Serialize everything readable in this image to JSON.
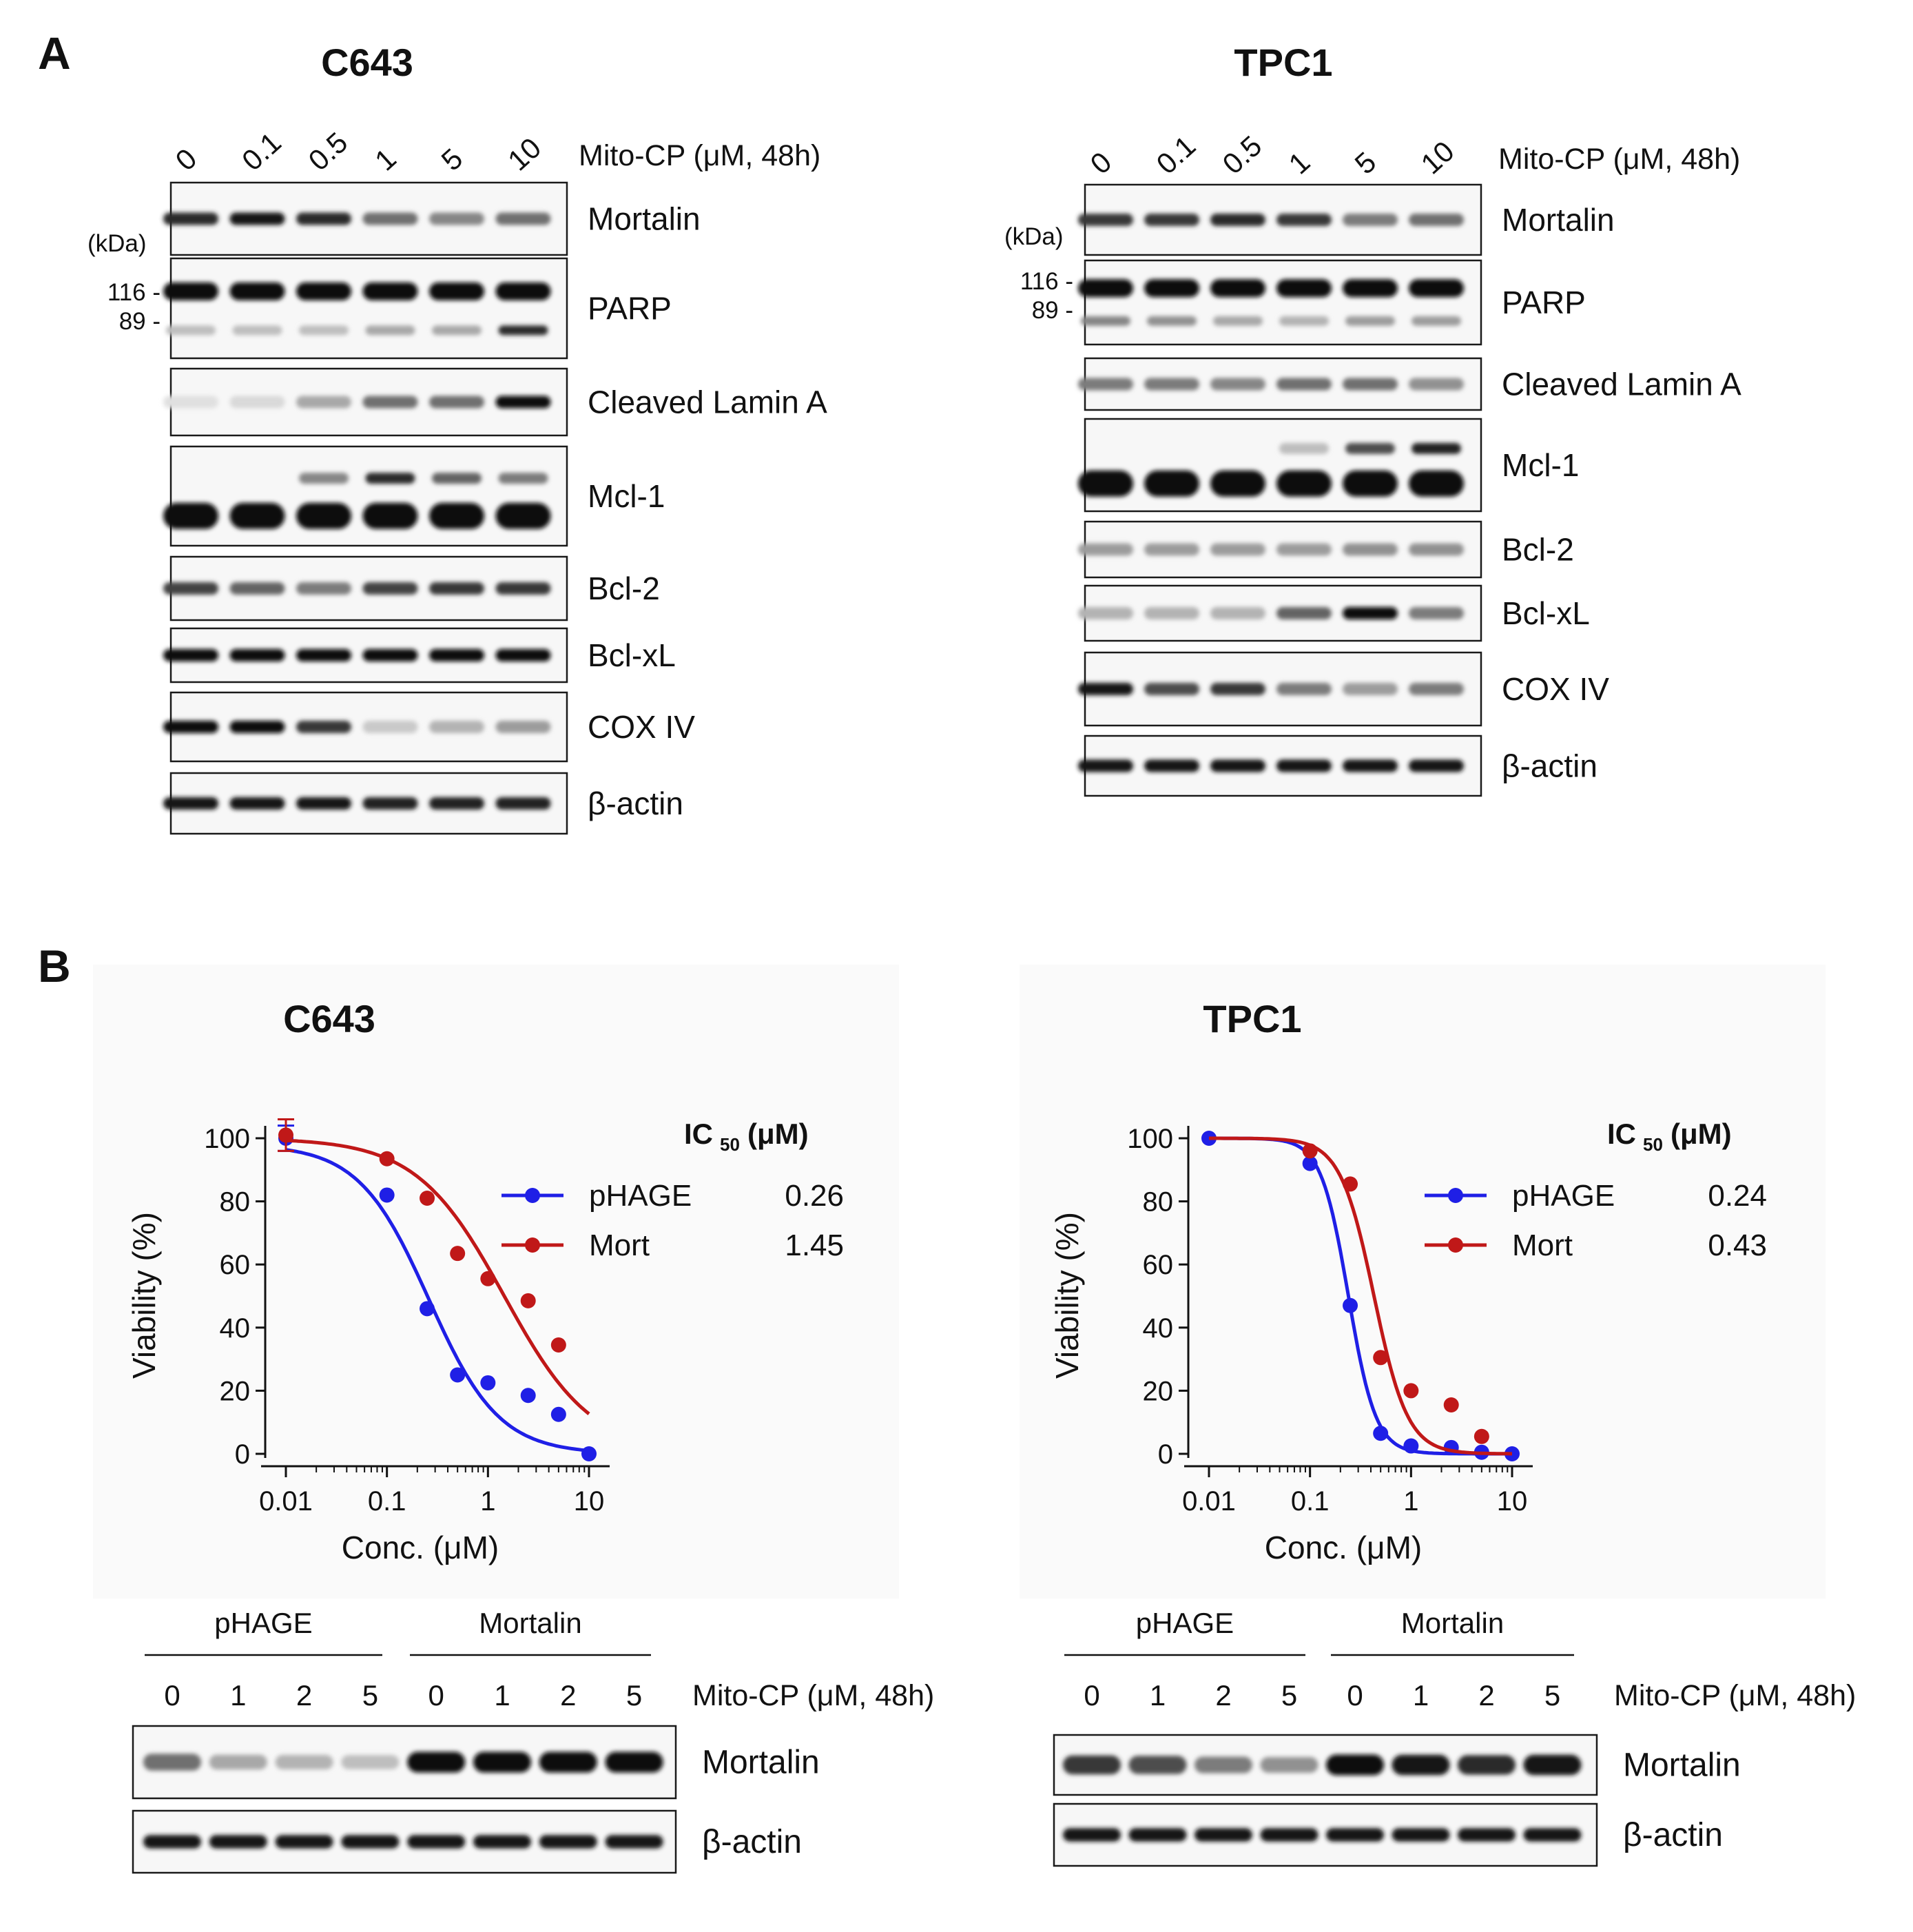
{
  "panel_a": {
    "letter": "A",
    "treatment_label": "Mito-CP (μM, 48h)",
    "kda_label": "(kDa)",
    "blots": [
      {
        "title": "C643",
        "doses": [
          "0",
          "0.1",
          "0.5",
          "1",
          "5",
          "10"
        ],
        "markers": [
          "116 -",
          "89 -"
        ],
        "rows": [
          {
            "name": "Mortalin",
            "intensity": [
              0.85,
              0.95,
              0.85,
              0.55,
              0.45,
              0.55
            ]
          },
          {
            "name": "PARP",
            "intensity": [
              1,
              1,
              1,
              1,
              1,
              1
            ],
            "lower_band": [
              0.2,
              0.2,
              0.2,
              0.3,
              0.3,
              0.85
            ]
          },
          {
            "name": "Cleaved  Lamin  A",
            "intensity": [
              0.05,
              0.08,
              0.3,
              0.55,
              0.55,
              1
            ]
          },
          {
            "name": "Mcl-1",
            "intensity": [
              1,
              1,
              1,
              1,
              1,
              1
            ],
            "upper_band": [
              0,
              0,
              0.45,
              0.85,
              0.6,
              0.5
            ]
          },
          {
            "name": "Bcl-2",
            "intensity": [
              0.75,
              0.6,
              0.5,
              0.75,
              0.8,
              0.8
            ]
          },
          {
            "name": "Bcl-xL",
            "intensity": [
              1,
              1,
              1,
              1,
              1,
              1
            ]
          },
          {
            "name": "COX  IV",
            "intensity": [
              1,
              1,
              0.8,
              0.15,
              0.25,
              0.35
            ]
          },
          {
            "name": "β-actin",
            "intensity": [
              0.95,
              0.95,
              0.95,
              0.9,
              0.9,
              0.9
            ]
          }
        ]
      },
      {
        "title": "TPC1",
        "doses": [
          "0",
          "0.1",
          "0.5",
          "1",
          "5",
          "10"
        ],
        "markers": [
          "116 -",
          "89 -"
        ],
        "rows": [
          {
            "name": "Mortalin",
            "intensity": [
              0.8,
              0.8,
              0.85,
              0.8,
              0.5,
              0.55
            ]
          },
          {
            "name": "PARP",
            "intensity": [
              1,
              1,
              1,
              1,
              1,
              1
            ],
            "lower_band": [
              0.45,
              0.4,
              0.3,
              0.25,
              0.35,
              0.35
            ]
          },
          {
            "name": "Cleaved  Lamin  A",
            "intensity": [
              0.5,
              0.5,
              0.45,
              0.55,
              0.55,
              0.4
            ]
          },
          {
            "name": "Mcl-1",
            "intensity": [
              1,
              1,
              1,
              1,
              1,
              1
            ],
            "upper_band": [
              0,
              0,
              0,
              0.2,
              0.7,
              0.9
            ]
          },
          {
            "name": "Bcl-2",
            "intensity": [
              0.35,
              0.35,
              0.35,
              0.35,
              0.4,
              0.4
            ]
          },
          {
            "name": "Bcl-xL",
            "intensity": [
              0.25,
              0.25,
              0.25,
              0.6,
              1,
              0.5
            ]
          },
          {
            "name": "COX  IV",
            "intensity": [
              0.95,
              0.7,
              0.8,
              0.5,
              0.35,
              0.5
            ]
          },
          {
            "name": "β-actin",
            "intensity": [
              0.95,
              0.95,
              0.95,
              0.95,
              0.95,
              0.95
            ]
          }
        ]
      }
    ]
  },
  "panel_b": {
    "letter": "B",
    "charts": [
      {
        "title": "C643",
        "ic50_title": "IC",
        "ic50_sub": "50",
        "ic50_unit": "(μM)",
        "ic50_values": [
          "0.26",
          "1.45"
        ]
      },
      {
        "title": "TPC1",
        "ic50_title": "IC",
        "ic50_sub": "50",
        "ic50_unit": "(μM)",
        "ic50_values": [
          "0.24",
          "0.43"
        ]
      }
    ],
    "blots": [
      {
        "group_labels": [
          "pHAGE",
          "Mortalin"
        ],
        "doses": [
          "0",
          "1",
          "2",
          "5",
          "0",
          "1",
          "2",
          "5"
        ],
        "treatment_label": "Mito-CP (μM, 48h)",
        "rows": [
          {
            "name": "Mortalin",
            "intensity": [
              0.55,
              0.3,
              0.25,
              0.2,
              1,
              1,
              1,
              1
            ]
          },
          {
            "name": "β-actin",
            "intensity": [
              0.95,
              0.95,
              0.95,
              0.95,
              0.95,
              0.95,
              0.95,
              0.95
            ]
          }
        ]
      },
      {
        "group_labels": [
          "pHAGE",
          "Mortalin"
        ],
        "doses": [
          "0",
          "1",
          "2",
          "5",
          "0",
          "1",
          "2",
          "5"
        ],
        "treatment_label": "Mito-CP (μM, 48h)",
        "rows": [
          {
            "name": "Mortalin",
            "intensity": [
              0.8,
              0.7,
              0.5,
              0.4,
              1,
              0.95,
              0.85,
              0.95
            ]
          },
          {
            "name": "β-actin",
            "intensity": [
              0.95,
              0.95,
              0.95,
              0.95,
              0.95,
              0.95,
              0.95,
              0.95
            ]
          }
        ]
      }
    ]
  },
  "chart_data": [
    {
      "type": "scatter",
      "title": "C643",
      "xlabel": "Conc. (μM)",
      "ylabel": "Viability (%)",
      "x_scale": "log",
      "xlim": [
        0.01,
        10
      ],
      "ylim": [
        0,
        100
      ],
      "x_ticks": [
        "0.01",
        "0.1",
        "1",
        "10"
      ],
      "y_ticks": [
        "0",
        "20",
        "40",
        "60",
        "80",
        "100"
      ],
      "legend_position": "top-right",
      "series": [
        {
          "name": "pHAGE",
          "color": "#1f1fe6",
          "ic50": 0.26,
          "x": [
            0.01,
            0.1,
            0.25,
            0.5,
            1,
            2.5,
            5,
            10
          ],
          "y": [
            100,
            82,
            46,
            25,
            22.5,
            18.5,
            12.5,
            0
          ],
          "error_at_first": 4
        },
        {
          "name": "Mort",
          "color": "#c01818",
          "ic50": 1.45,
          "x": [
            0.01,
            0.1,
            0.25,
            0.5,
            1,
            2.5,
            5
          ],
          "y": [
            101,
            93.5,
            81,
            63.5,
            55.5,
            48.5,
            34.5
          ],
          "error_at_first": 5
        }
      ]
    },
    {
      "type": "scatter",
      "title": "TPC1",
      "xlabel": "Conc. (μM)",
      "ylabel": "Viability (%)",
      "x_scale": "log",
      "xlim": [
        0.01,
        10
      ],
      "ylim": [
        0,
        100
      ],
      "x_ticks": [
        "0.01",
        "0.1",
        "1",
        "10"
      ],
      "y_ticks": [
        "0",
        "20",
        "40",
        "60",
        "80",
        "100"
      ],
      "legend_position": "top-right",
      "series": [
        {
          "name": "pHAGE",
          "color": "#1f1fe6",
          "ic50": 0.24,
          "x": [
            0.01,
            0.1,
            0.25,
            0.5,
            1,
            2.5,
            5,
            10
          ],
          "y": [
            100,
            92,
            47,
            6.5,
            2.5,
            2,
            0.5,
            0
          ]
        },
        {
          "name": "Mort",
          "color": "#c01818",
          "ic50": 0.43,
          "x": [
            0.1,
            0.25,
            0.5,
            1,
            2.5,
            5
          ],
          "y": [
            96,
            85.5,
            30.5,
            20,
            15.5,
            5.5
          ]
        }
      ]
    }
  ]
}
